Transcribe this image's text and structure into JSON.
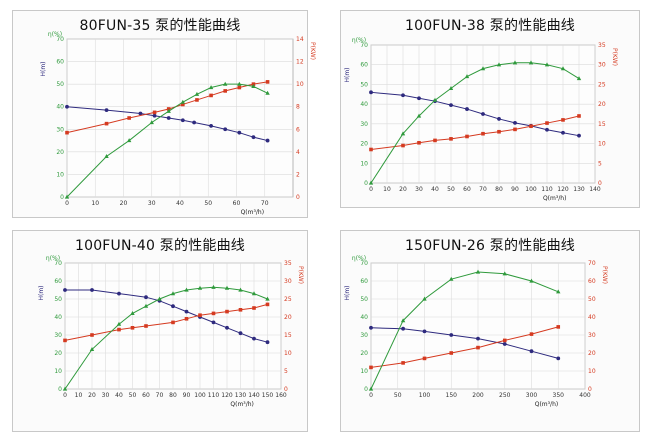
{
  "chart_data": [
    {
      "type": "line",
      "title": "80FUN-35 泵的性能曲线",
      "xlabel": "Q(m³/h)",
      "eff_label": "η(%)",
      "head_label": "H(m)",
      "power_label": "P(KW)",
      "xlim": [
        0,
        80
      ],
      "left_ylim": [
        0,
        70
      ],
      "right_ylim": [
        0,
        14
      ],
      "x_ticks": [
        0,
        10,
        20,
        30,
        40,
        50,
        60,
        70
      ],
      "left_ticks": [
        0,
        10,
        20,
        30,
        40,
        50,
        60,
        70
      ],
      "right_ticks": [
        0,
        2,
        4,
        6,
        8,
        10,
        12,
        14
      ],
      "series": [
        {
          "axis": "left",
          "color": "#2e2a7e",
          "marker": "circle",
          "x": [
            0,
            14,
            26,
            31,
            36,
            41,
            45,
            51,
            56,
            61,
            66,
            71
          ],
          "y": [
            40,
            38.5,
            37,
            36,
            35,
            34,
            33,
            31.5,
            30,
            28.5,
            26.5,
            25
          ]
        },
        {
          "axis": "right",
          "color": "#d53a20",
          "marker": "square",
          "x": [
            0,
            14,
            22,
            31,
            36,
            41,
            46,
            51,
            56,
            61,
            66,
            71
          ],
          "y": [
            5.7,
            6.5,
            7,
            7.5,
            7.8,
            8.2,
            8.6,
            9,
            9.4,
            9.7,
            10,
            10.2
          ]
        },
        {
          "axis": "left",
          "color": "#2f9a3c",
          "marker": "triangle",
          "x": [
            0,
            14,
            22,
            30,
            36,
            41,
            46,
            51,
            56,
            61,
            66,
            71
          ],
          "y": [
            0,
            18,
            25,
            33,
            38,
            42,
            45.5,
            48.5,
            50,
            50,
            49,
            46
          ]
        }
      ]
    },
    {
      "type": "line",
      "title": "100FUN-38 泵的性能曲线",
      "xlabel": "Q(m³/h)",
      "eff_label": "η(%)",
      "head_label": "H(m)",
      "power_label": "P(KW)",
      "xlim": [
        0,
        140
      ],
      "left_ylim": [
        0,
        70
      ],
      "right_ylim": [
        0,
        35
      ],
      "x_ticks": [
        0,
        10,
        20,
        30,
        40,
        50,
        60,
        70,
        80,
        90,
        100,
        110,
        120,
        130,
        140
      ],
      "left_ticks": [
        0,
        10,
        20,
        30,
        40,
        50,
        60,
        70
      ],
      "right_ticks": [
        0,
        5,
        10,
        15,
        20,
        25,
        30,
        35
      ],
      "series": [
        {
          "axis": "left",
          "color": "#2e2a7e",
          "marker": "circle",
          "x": [
            0,
            20,
            30,
            40,
            50,
            60,
            70,
            80,
            90,
            100,
            110,
            120,
            130
          ],
          "y": [
            46,
            44.5,
            43,
            41.5,
            39.5,
            37.5,
            35,
            32.5,
            30.5,
            29,
            27,
            25.5,
            24
          ]
        },
        {
          "axis": "right",
          "color": "#d53a20",
          "marker": "square",
          "x": [
            0,
            20,
            30,
            40,
            50,
            60,
            70,
            80,
            90,
            100,
            110,
            120,
            130
          ],
          "y": [
            8.5,
            9.5,
            10.2,
            10.8,
            11.2,
            11.8,
            12.5,
            13,
            13.6,
            14.4,
            15.2,
            16,
            17
          ]
        },
        {
          "axis": "left",
          "color": "#2f9a3c",
          "marker": "triangle",
          "x": [
            0,
            20,
            30,
            40,
            50,
            60,
            70,
            80,
            90,
            100,
            110,
            120,
            130
          ],
          "y": [
            0,
            25,
            34,
            42,
            48,
            54,
            58,
            60,
            61,
            61,
            60,
            58,
            53
          ]
        }
      ]
    },
    {
      "type": "line",
      "title": "100FUN-40 泵的性能曲线",
      "xlabel": "Q(m³/h)",
      "eff_label": "η(%)",
      "head_label": "H(m)",
      "power_label": "P(KW)",
      "xlim": [
        0,
        160
      ],
      "left_ylim": [
        0,
        70
      ],
      "right_ylim": [
        0,
        35
      ],
      "x_ticks": [
        0,
        10,
        20,
        30,
        40,
        50,
        60,
        70,
        80,
        90,
        100,
        110,
        120,
        130,
        140,
        150,
        160
      ],
      "left_ticks": [
        0,
        10,
        20,
        30,
        40,
        50,
        60,
        70
      ],
      "right_ticks": [
        0,
        5,
        10,
        15,
        20,
        25,
        30,
        35
      ],
      "series": [
        {
          "axis": "left",
          "color": "#2e2a7e",
          "marker": "circle",
          "x": [
            0,
            20,
            40,
            60,
            70,
            80,
            90,
            100,
            110,
            120,
            130,
            140,
            150
          ],
          "y": [
            55,
            55,
            53,
            51,
            49,
            46,
            43,
            40,
            37,
            34,
            31,
            28,
            26
          ]
        },
        {
          "axis": "right",
          "color": "#d53a20",
          "marker": "square",
          "x": [
            0,
            20,
            40,
            50,
            60,
            80,
            90,
            100,
            110,
            120,
            130,
            140,
            150
          ],
          "y": [
            13.5,
            15,
            16.5,
            17,
            17.5,
            18.5,
            19.5,
            20.5,
            21,
            21.5,
            22,
            22.5,
            23.5
          ]
        },
        {
          "axis": "left",
          "color": "#2f9a3c",
          "marker": "triangle",
          "x": [
            0,
            20,
            40,
            50,
            60,
            70,
            80,
            90,
            100,
            110,
            120,
            130,
            140,
            150
          ],
          "y": [
            0,
            22,
            36,
            42,
            46,
            50,
            53,
            55,
            56,
            56.5,
            56,
            55,
            53,
            50
          ]
        }
      ]
    },
    {
      "type": "line",
      "title": "150FUN-26 泵的性能曲线",
      "xlabel": "Q(m³/h)",
      "eff_label": "η(%)",
      "head_label": "H(m)",
      "power_label": "P(KW)",
      "xlim": [
        0,
        400
      ],
      "left_ylim": [
        0,
        70
      ],
      "right_ylim": [
        0,
        70
      ],
      "x_ticks": [
        0,
        50,
        100,
        150,
        200,
        250,
        300,
        350,
        400
      ],
      "left_ticks": [
        0,
        10,
        20,
        30,
        40,
        50,
        60,
        70
      ],
      "right_ticks": [
        0,
        10,
        20,
        30,
        40,
        50,
        60,
        70
      ],
      "series": [
        {
          "axis": "left",
          "color": "#2e2a7e",
          "marker": "circle",
          "x": [
            0,
            60,
            100,
            150,
            200,
            250,
            300,
            350
          ],
          "y": [
            34,
            33.5,
            32,
            30,
            28,
            25,
            21,
            17
          ]
        },
        {
          "axis": "right",
          "color": "#d53a20",
          "marker": "square",
          "x": [
            0,
            60,
            100,
            150,
            200,
            250,
            300,
            350
          ],
          "y": [
            12,
            14.5,
            17,
            20,
            23,
            27,
            30.5,
            34.5
          ]
        },
        {
          "axis": "left",
          "color": "#2f9a3c",
          "marker": "triangle",
          "x": [
            0,
            60,
            100,
            150,
            200,
            250,
            300,
            350
          ],
          "y": [
            0,
            38,
            50,
            61,
            65,
            64,
            60,
            54
          ]
        }
      ]
    }
  ]
}
